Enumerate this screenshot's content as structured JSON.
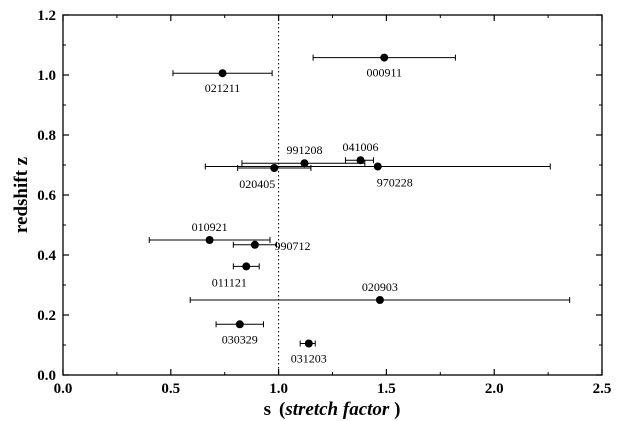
{
  "chart_data": {
    "type": "scatter",
    "xlabel": "s",
    "xlabel_italic": "(stretch factor)",
    "ylabel": "redshift z",
    "xlim": [
      0.0,
      2.5
    ],
    "ylim": [
      0.0,
      1.2
    ],
    "x_ticks": [
      "0.0",
      "0.5",
      "1.0",
      "1.5",
      "2.0",
      "2.5"
    ],
    "y_ticks": [
      "0.0",
      "0.2",
      "0.4",
      "0.6",
      "0.8",
      "1.0",
      "1.2"
    ],
    "x_minor_step": 0.25,
    "y_minor_step": 0.1,
    "reference_line": {
      "x": 1.0,
      "style": "dotted"
    },
    "grid": false,
    "points": [
      {
        "name": "000911",
        "s": 1.49,
        "z": 1.058,
        "s_lo": 1.16,
        "s_hi": 1.82,
        "label_pos": "below"
      },
      {
        "name": "021211",
        "s": 0.74,
        "z": 1.006,
        "s_lo": 0.51,
        "s_hi": 0.97,
        "label_pos": "below"
      },
      {
        "name": "991208",
        "s": 1.12,
        "z": 0.706,
        "s_lo": 0.83,
        "s_hi": 1.4,
        "label_pos": "above"
      },
      {
        "name": "041006",
        "s": 1.38,
        "z": 0.716,
        "s_lo": 1.31,
        "s_hi": 1.44,
        "label_pos": "above"
      },
      {
        "name": "970228",
        "s": 1.46,
        "z": 0.695,
        "s_lo": 0.66,
        "s_hi": 2.26,
        "label_pos": "below-right"
      },
      {
        "name": "020405",
        "s": 0.98,
        "z": 0.69,
        "s_lo": 0.81,
        "s_hi": 1.15,
        "label_pos": "below-left"
      },
      {
        "name": "010921",
        "s": 0.68,
        "z": 0.45,
        "s_lo": 0.4,
        "s_hi": 0.96,
        "label_pos": "above"
      },
      {
        "name": "990712",
        "s": 0.89,
        "z": 0.434,
        "s_lo": 0.79,
        "s_hi": 0.99,
        "label_pos": "right"
      },
      {
        "name": "011121",
        "s": 0.85,
        "z": 0.362,
        "s_lo": 0.79,
        "s_hi": 0.91,
        "label_pos": "below-left"
      },
      {
        "name": "020903",
        "s": 1.47,
        "z": 0.25,
        "s_lo": 0.59,
        "s_hi": 2.35,
        "label_pos": "above"
      },
      {
        "name": "030329",
        "s": 0.82,
        "z": 0.169,
        "s_lo": 0.71,
        "s_hi": 0.93,
        "label_pos": "below"
      },
      {
        "name": "031203",
        "s": 1.14,
        "z": 0.105,
        "s_lo": 1.1,
        "s_hi": 1.17,
        "label_pos": "below"
      }
    ]
  }
}
